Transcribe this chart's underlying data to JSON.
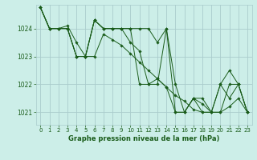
{
  "title": "Graphe pression niveau de la mer (hPa)",
  "bg_color": "#cceee8",
  "grid_color": "#aacccc",
  "line_color": "#1a5c1a",
  "xlim": [
    -0.5,
    23.5
  ],
  "ylim": [
    1020.55,
    1024.85
  ],
  "yticks": [
    1021,
    1022,
    1023,
    1024
  ],
  "xticks": [
    0,
    1,
    2,
    3,
    4,
    5,
    6,
    7,
    8,
    9,
    10,
    11,
    12,
    13,
    14,
    15,
    16,
    17,
    18,
    19,
    20,
    21,
    22,
    23
  ],
  "series": [
    [
      1024.75,
      1024.0,
      1024.0,
      1024.0,
      1023.0,
      1023.0,
      1024.3,
      1024.0,
      1024.0,
      1024.0,
      1024.0,
      1022.0,
      1022.0,
      1022.0,
      1024.0,
      1021.0,
      1021.0,
      1021.5,
      1021.5,
      1021.0,
      1022.0,
      1022.5,
      1022.0,
      1021.0
    ],
    [
      1024.75,
      1024.0,
      1024.0,
      1024.1,
      1023.5,
      1023.0,
      1023.0,
      1023.8,
      1023.6,
      1023.4,
      1023.1,
      1022.8,
      1022.5,
      1022.2,
      1021.9,
      1021.6,
      1021.4,
      1021.1,
      1021.0,
      1021.0,
      1021.0,
      1021.2,
      1021.5,
      1021.0
    ],
    [
      1024.75,
      1024.0,
      1024.0,
      1024.0,
      1023.0,
      1023.0,
      1024.3,
      1024.0,
      1024.0,
      1024.0,
      1023.5,
      1023.2,
      1022.0,
      1022.2,
      1021.9,
      1021.0,
      1021.0,
      1021.5,
      1021.0,
      1021.0,
      1021.0,
      1022.0,
      1022.0,
      1021.0
    ],
    [
      1024.75,
      1024.0,
      1024.0,
      1024.0,
      1023.0,
      1023.0,
      1024.3,
      1024.0,
      1024.0,
      1024.0,
      1024.0,
      1024.0,
      1024.0,
      1023.5,
      1024.0,
      1022.0,
      1021.0,
      1021.5,
      1021.3,
      1021.0,
      1022.0,
      1021.5,
      1022.0,
      1021.0
    ]
  ],
  "title_fontsize": 6.0,
  "tick_fontsize": 5.0
}
